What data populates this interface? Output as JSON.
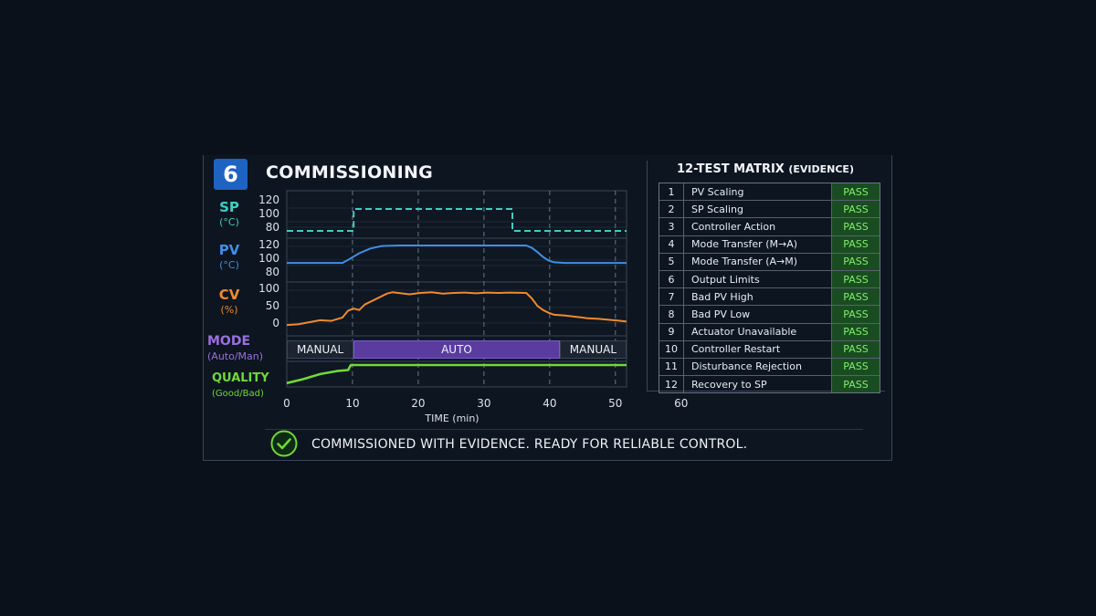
{
  "step_number": "6",
  "title": "COMMISSIONING",
  "signals": {
    "sp": {
      "name": "SP",
      "unit": "(°C)",
      "color": "#3ecfbf"
    },
    "pv": {
      "name": "PV",
      "unit": "(°C)",
      "color": "#3f8fe6"
    },
    "cv": {
      "name": "CV",
      "unit": "(%)",
      "color": "#f08a2c"
    },
    "mode": {
      "name": "MODE",
      "unit": "(Auto/Man)",
      "color": "#9b6fe0"
    },
    "quality": {
      "name": "QUALITY",
      "unit": "(Good/Bad)",
      "color": "#6fd83a"
    }
  },
  "axes": {
    "sp_ticks": [
      "120",
      "100",
      "80"
    ],
    "pv_ticks": [
      "120",
      "100",
      "80"
    ],
    "cv_ticks": [
      "100",
      "50",
      "0"
    ],
    "x_ticks": [
      "0",
      "10",
      "20",
      "30",
      "40",
      "50",
      "60"
    ],
    "x_label": "TIME (min)"
  },
  "mode_segments": [
    {
      "label": "MANUAL",
      "start": 0,
      "end": 12
    },
    {
      "label": "AUTO",
      "start": 12,
      "end": 49
    },
    {
      "label": "MANUAL",
      "start": 49,
      "end": 61
    }
  ],
  "chart_data": {
    "type": "line",
    "x_range": [
      0,
      61
    ],
    "xlabel": "TIME (min)",
    "series": [
      {
        "name": "SP",
        "unit": "°C",
        "dashed": true,
        "ylim": [
          75,
          125
        ],
        "x": [
          0,
          12,
          12,
          40.5,
          40.5,
          61
        ],
        "y": [
          80,
          80,
          110,
          110,
          80,
          80
        ]
      },
      {
        "name": "PV",
        "unit": "°C",
        "dashed": false,
        "ylim": [
          75,
          125
        ],
        "x": [
          0,
          10,
          11,
          13,
          15,
          17,
          20,
          25,
          30,
          35,
          40,
          43,
          44,
          45,
          46,
          47,
          48,
          50,
          55,
          61
        ],
        "y": [
          90,
          90,
          95,
          106,
          114,
          118,
          119,
          119,
          119,
          119,
          119,
          119,
          115,
          108,
          100,
          94,
          91,
          90,
          90,
          90
        ]
      },
      {
        "name": "CV",
        "unit": "%",
        "dashed": false,
        "ylim": [
          -5,
          110
        ],
        "x": [
          0,
          2,
          4,
          6,
          8,
          10,
          11,
          12,
          13,
          14,
          15,
          16,
          18,
          19,
          20,
          22,
          24,
          26,
          28,
          30,
          32,
          34,
          36,
          38,
          40,
          43,
          44,
          45,
          46,
          47,
          48,
          50,
          52,
          54,
          56,
          58,
          60,
          61
        ],
        "y": [
          0,
          2,
          8,
          14,
          12,
          22,
          42,
          48,
          44,
          60,
          68,
          76,
          92,
          96,
          94,
          90,
          94,
          96,
          92,
          94,
          95,
          93,
          95,
          94,
          95,
          94,
          78,
          56,
          44,
          36,
          30,
          28,
          24,
          20,
          18,
          15,
          12,
          10
        ]
      },
      {
        "name": "QUALITY",
        "unit": "Good/Bad",
        "dashed": false,
        "ylim": [
          0,
          1
        ],
        "x": [
          0,
          3,
          6,
          9,
          11,
          11.5,
          61
        ],
        "y": [
          0.1,
          0.3,
          0.55,
          0.7,
          0.75,
          1,
          1
        ]
      }
    ]
  },
  "matrix": {
    "title": "12-TEST MATRIX",
    "subtitle": "(EVIDENCE)",
    "rows": [
      {
        "num": "1",
        "name": "PV Scaling",
        "result": "PASS"
      },
      {
        "num": "2",
        "name": "SP Scaling",
        "result": "PASS"
      },
      {
        "num": "3",
        "name": "Controller Action",
        "result": "PASS"
      },
      {
        "num": "4",
        "name": "Mode Transfer (M→A)",
        "result": "PASS"
      },
      {
        "num": "5",
        "name": "Mode Transfer (A→M)",
        "result": "PASS"
      },
      {
        "num": "6",
        "name": "Output Limits",
        "result": "PASS"
      },
      {
        "num": "7",
        "name": "Bad PV High",
        "result": "PASS"
      },
      {
        "num": "8",
        "name": "Bad PV Low",
        "result": "PASS"
      },
      {
        "num": "9",
        "name": "Actuator Unavailable",
        "result": "PASS"
      },
      {
        "num": "10",
        "name": "Controller Restart",
        "result": "PASS"
      },
      {
        "num": "11",
        "name": "Disturbance Rejection",
        "result": "PASS"
      },
      {
        "num": "12",
        "name": "Recovery to SP",
        "result": "PASS"
      }
    ]
  },
  "footer": {
    "icon": "check-circle-icon",
    "text": "COMMISSIONED WITH EVIDENCE.  READY FOR RELIABLE CONTROL."
  }
}
